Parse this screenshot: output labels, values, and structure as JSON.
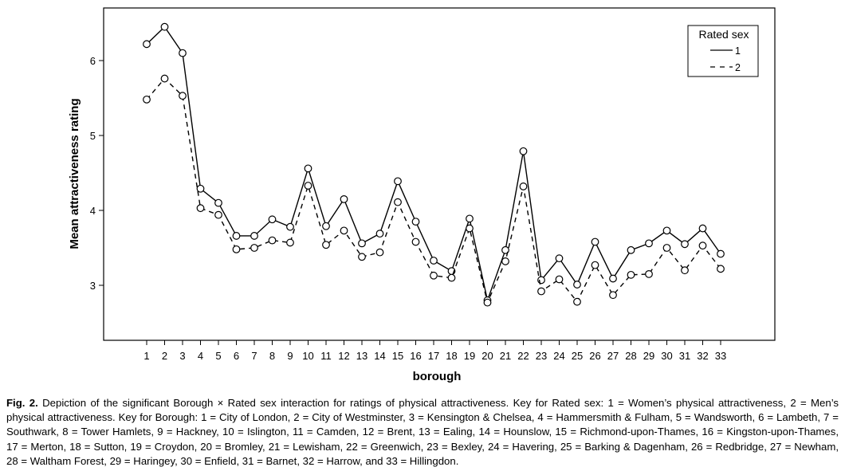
{
  "chart_data": {
    "type": "line",
    "title": "",
    "xlabel": "borough",
    "ylabel": "Mean attractiveness rating",
    "categories": [
      "1",
      "2",
      "3",
      "4",
      "5",
      "6",
      "7",
      "8",
      "9",
      "10",
      "11",
      "12",
      "13",
      "14",
      "15",
      "16",
      "17",
      "18",
      "19",
      "20",
      "21",
      "22",
      "23",
      "24",
      "25",
      "26",
      "27",
      "28",
      "29",
      "30",
      "31",
      "32",
      "33"
    ],
    "yticks": [
      3,
      4,
      5,
      6
    ],
    "ylim": [
      2.3,
      6.75
    ],
    "grid": false,
    "legend": {
      "title": "Rated sex",
      "placement": "top-right"
    },
    "series": [
      {
        "name": "1",
        "style": "solid",
        "values": [
          6.22,
          6.45,
          6.1,
          4.29,
          4.1,
          3.66,
          3.66,
          3.88,
          3.78,
          4.56,
          3.79,
          4.15,
          3.56,
          3.69,
          4.39,
          3.85,
          3.33,
          3.19,
          3.89,
          2.8,
          3.47,
          4.79,
          3.07,
          3.36,
          3.01,
          3.58,
          3.09,
          3.47,
          3.56,
          3.73,
          3.55,
          3.76,
          3.42
        ]
      },
      {
        "name": "2",
        "style": "dashed",
        "values": [
          5.48,
          5.76,
          5.53,
          4.03,
          3.94,
          3.48,
          3.5,
          3.6,
          3.57,
          4.33,
          3.54,
          3.73,
          3.38,
          3.44,
          4.11,
          3.58,
          3.13,
          3.1,
          3.76,
          2.77,
          3.32,
          4.32,
          2.92,
          3.08,
          2.78,
          3.27,
          2.87,
          3.14,
          3.15,
          3.5,
          3.2,
          3.53,
          3.22
        ]
      }
    ]
  },
  "caption": {
    "label": "Fig. 2.",
    "text": "Depiction of the significant Borough × Rated sex interaction for ratings of physical attractiveness. Key for Rated sex: 1 = Women’s physical attractiveness, 2 = Men’s physical attractiveness. Key for Borough: 1 = City of London, 2 = City of Westminster, 3 = Kensington & Chelsea, 4 = Hammersmith & Fulham, 5 = Wandsworth, 6 = Lambeth, 7 = Southwark, 8 = Tower Hamlets, 9 = Hackney, 10 = Islington, 11 = Camden, 12 = Brent, 13 = Ealing, 14 = Hounslow, 15 = Richmond-upon-Thames, 16 = Kingston-upon-Thames, 17 = Merton, 18 = Sutton, 19 = Croydon, 20 = Bromley, 21 = Lewisham, 22 = Greenwich, 23 = Bexley, 24 = Havering, 25 = Barking & Dagenham, 26 = Redbridge, 27 = Newham, 28 = Waltham Forest, 29 = Haringey, 30 = Enfield, 31 = Barnet, 32 = Harrow, and 33 = Hillingdon."
  }
}
